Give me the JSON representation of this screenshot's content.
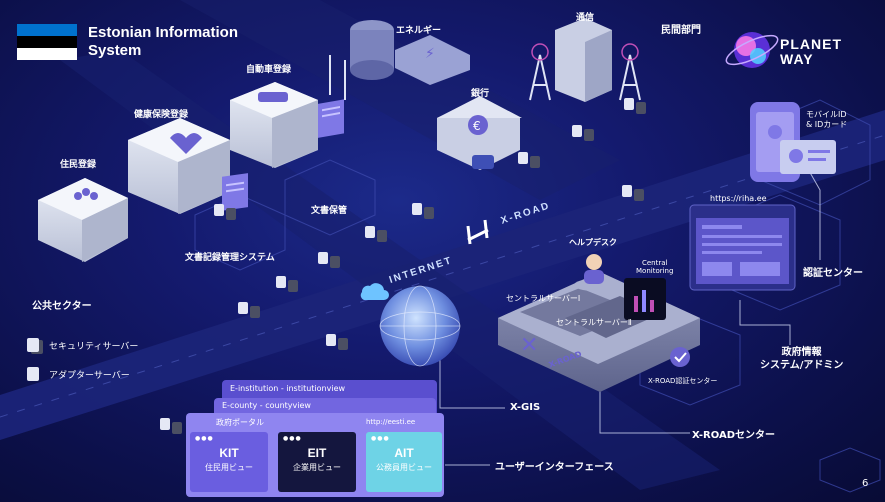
{
  "title": {
    "line1": "Estonian Information",
    "line2": "System"
  },
  "brand": {
    "line1": "PLANET",
    "line2": "WAY"
  },
  "page_number": "6",
  "flag_colors": [
    "#0072ce",
    "#000000",
    "#ffffff"
  ],
  "accent_colors": {
    "background": "#141a6e",
    "road": "#1b2478",
    "window": "#6b5fe0",
    "card_aqua": "#6ed3e6"
  },
  "road_labels": {
    "internet": "INTERNET",
    "xroad": "X-ROAD"
  },
  "buildings": {
    "population_registry": "住民登録",
    "health_insurance": "健康保険登録",
    "vehicle_registry": "自動車登録",
    "energy": "エネルギー",
    "telecom": "通信",
    "private_sector": "民間部門",
    "bank": "銀行",
    "document_storage": "文書保管",
    "document_management": "文書記録管理システム"
  },
  "legend": {
    "public_sector": "公共セクター",
    "security_server": "セキュリティサーバー",
    "adapter_server": "アダプターサーバー"
  },
  "center": {
    "helpdesk": "ヘルプデスク",
    "central_monitoring_line1": "Central",
    "central_monitoring_line2": "Monitoring",
    "central_server_1": "セントラルサーバーⅠ",
    "central_server_2": "セントラルサーバーⅡ",
    "xroad_cert_center": "X-ROAD認証センター",
    "xroad_center": "X-ROADセンター",
    "xroad_logo": "X-ROAD"
  },
  "right": {
    "mobile_id_line1": "モバイルID",
    "mobile_id_line2": "& IDカード",
    "riha_url": "https://riha.ee",
    "cert_center": "認証センター",
    "gov_info_line1": "政府情報",
    "gov_info_line2": "システム/アドミン"
  },
  "xgis": "X-GIS",
  "user_interface": "ユーザーインターフェース",
  "portal": {
    "e_institution": "E-institution - institutionview",
    "e_county": "E-county - countyview",
    "gov_portal": "政府ポータル",
    "eesti_url": "http://eesti.ee",
    "cards": [
      {
        "code": "KIT",
        "label": "住民用ビュー"
      },
      {
        "code": "EIT",
        "label": "企業用ビュー"
      },
      {
        "code": "AIT",
        "label": "公務員用ビュー"
      }
    ]
  }
}
